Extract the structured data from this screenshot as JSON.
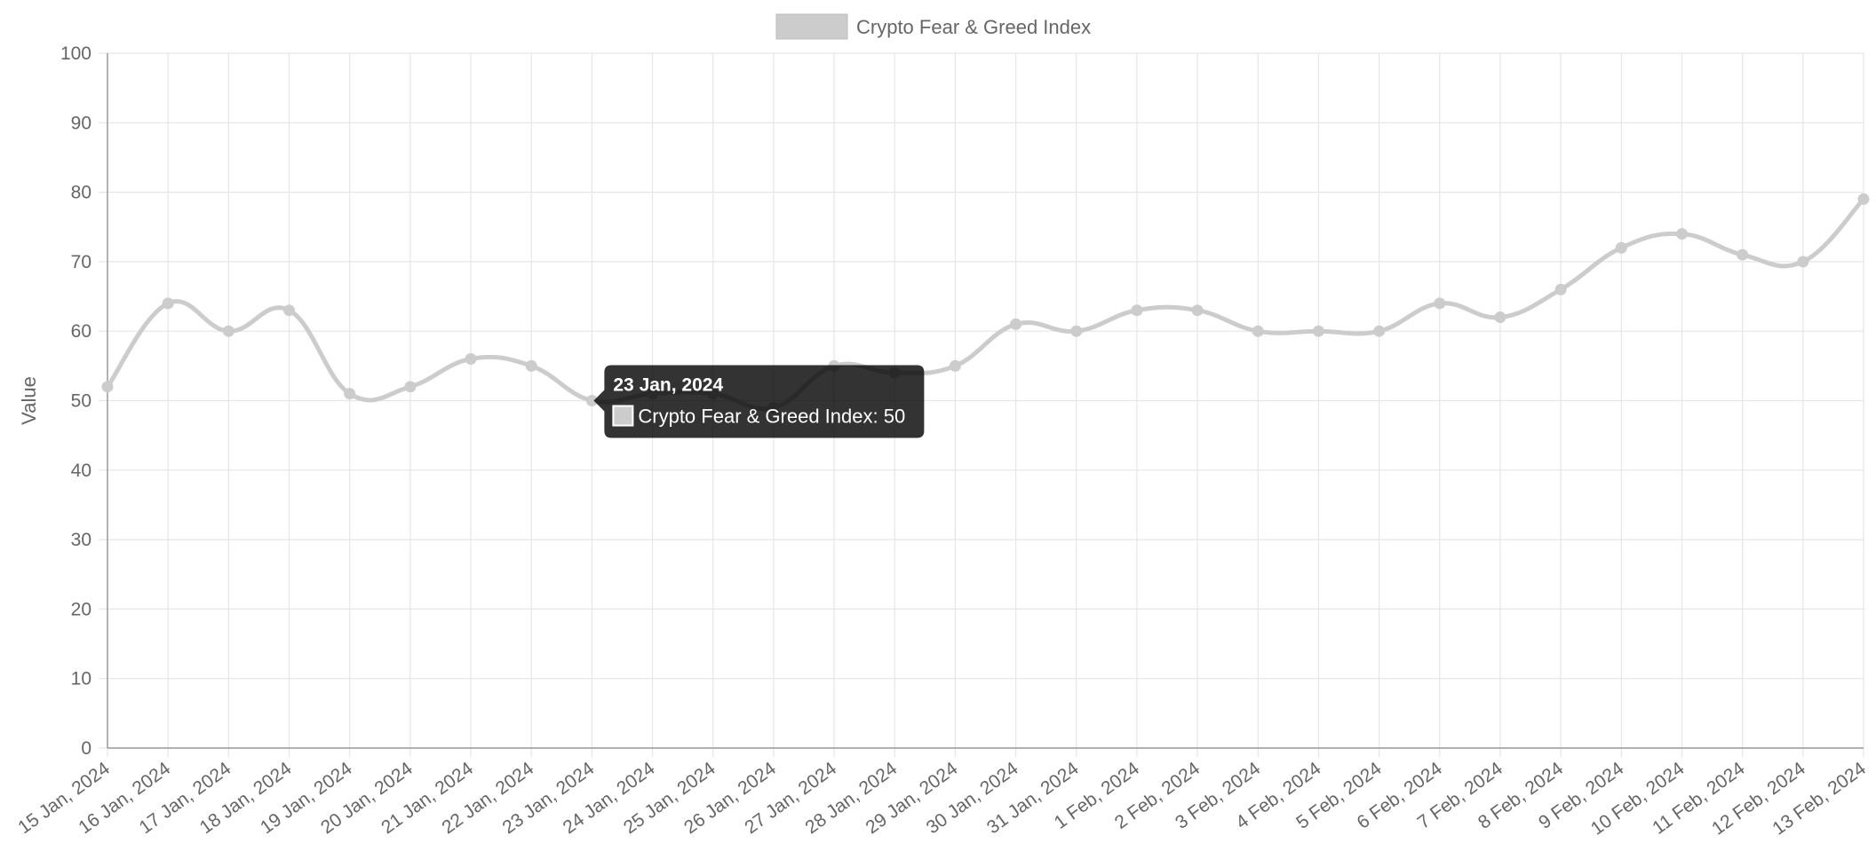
{
  "chart_data": {
    "type": "line",
    "title": "",
    "xlabel": "",
    "ylabel": "Value",
    "ylim": [
      0,
      100
    ],
    "yticks": [
      0,
      10,
      20,
      30,
      40,
      50,
      60,
      70,
      80,
      90,
      100
    ],
    "grid": true,
    "legend": {
      "position": "top-center",
      "entries": [
        "Crypto Fear & Greed Index"
      ]
    },
    "categories": [
      "15 Jan, 2024",
      "16 Jan, 2024",
      "17 Jan, 2024",
      "18 Jan, 2024",
      "19 Jan, 2024",
      "20 Jan, 2024",
      "21 Jan, 2024",
      "22 Jan, 2024",
      "23 Jan, 2024",
      "24 Jan, 2024",
      "25 Jan, 2024",
      "26 Jan, 2024",
      "27 Jan, 2024",
      "28 Jan, 2024",
      "29 Jan, 2024",
      "30 Jan, 2024",
      "31 Jan, 2024",
      "1 Feb, 2024",
      "2 Feb, 2024",
      "3 Feb, 2024",
      "4 Feb, 2024",
      "5 Feb, 2024",
      "6 Feb, 2024",
      "7 Feb, 2024",
      "8 Feb, 2024",
      "9 Feb, 2024",
      "10 Feb, 2024",
      "11 Feb, 2024",
      "12 Feb, 2024",
      "13 Feb, 2024"
    ],
    "series": [
      {
        "name": "Crypto Fear & Greed Index",
        "color": "#cccccc",
        "values": [
          52,
          64,
          60,
          63,
          51,
          52,
          56,
          55,
          50,
          51,
          51,
          49,
          55,
          54,
          55,
          61,
          60,
          63,
          63,
          60,
          60,
          60,
          64,
          62,
          66,
          72,
          74,
          71,
          70,
          79
        ]
      }
    ],
    "tooltip": {
      "title": "23 Jan, 2024",
      "label": "Crypto Fear & Greed Index: 50"
    }
  }
}
